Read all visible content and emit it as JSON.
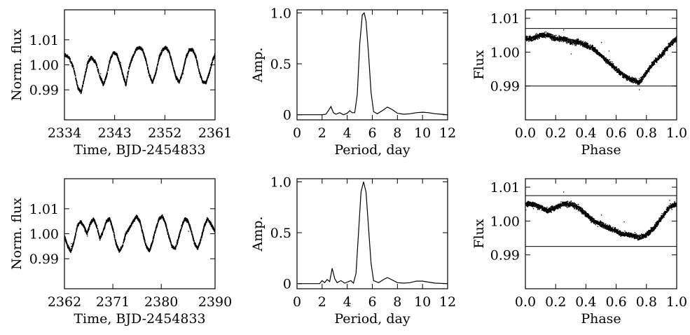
{
  "chart_data": [
    {
      "id": "lc1",
      "type": "scatter",
      "xlabel": "Time, BJD-2454833",
      "ylabel": "Norm. flux",
      "xlim": [
        2334,
        2361
      ],
      "ylim": [
        0.978,
        1.022
      ],
      "xticks": [
        2334,
        2343,
        2352,
        2361
      ],
      "xtick_labels": [
        "2334",
        "2343",
        "2352",
        "2361"
      ],
      "yticks": [
        0.99,
        1.0,
        1.01
      ],
      "ytick_labels": [
        "0.99",
        "1.00",
        "1.01"
      ],
      "series": [
        {
          "values": [
            [
              2334.0,
              1.004
            ],
            [
              2334.8,
              1.003
            ],
            [
              2335.6,
              0.999
            ],
            [
              2336.4,
              0.991
            ],
            [
              2337.0,
              0.989
            ],
            [
              2337.6,
              0.995
            ],
            [
              2338.2,
              1.001
            ],
            [
              2338.8,
              1.003
            ],
            [
              2339.6,
              1.001
            ],
            [
              2340.4,
              0.995
            ],
            [
              2341.0,
              0.992
            ],
            [
              2341.6,
              0.996
            ],
            [
              2342.2,
              1.002
            ],
            [
              2342.8,
              1.005
            ],
            [
              2343.4,
              1.004
            ],
            [
              2344.0,
              1.0
            ],
            [
              2344.6,
              0.995
            ],
            [
              2345.0,
              0.992
            ],
            [
              2345.6,
              0.999
            ],
            [
              2346.2,
              1.003
            ],
            [
              2346.8,
              1.006
            ],
            [
              2347.4,
              1.007
            ],
            [
              2348.0,
              1.006
            ],
            [
              2348.6,
              1.002
            ],
            [
              2349.2,
              0.996
            ],
            [
              2349.8,
              0.993
            ],
            [
              2350.4,
              0.997
            ],
            [
              2351.0,
              1.003
            ],
            [
              2351.6,
              1.006
            ],
            [
              2352.2,
              1.007
            ],
            [
              2352.8,
              1.005
            ],
            [
              2353.4,
              1.0
            ],
            [
              2354.0,
              0.995
            ],
            [
              2354.6,
              0.993
            ],
            [
              2355.2,
              0.997
            ],
            [
              2355.8,
              1.003
            ],
            [
              2356.4,
              1.006
            ],
            [
              2357.0,
              1.006
            ],
            [
              2357.6,
              1.003
            ],
            [
              2358.2,
              0.997
            ],
            [
              2358.8,
              0.993
            ],
            [
              2359.4,
              0.993
            ],
            [
              2360.0,
              0.997
            ],
            [
              2360.6,
              1.002
            ],
            [
              2361.0,
              1.004
            ]
          ]
        }
      ]
    },
    {
      "id": "ps1",
      "type": "line",
      "xlabel": "Period, day",
      "ylabel": "Amp.",
      "xlim": [
        0,
        12
      ],
      "ylim": [
        -0.05,
        1.03
      ],
      "xticks": [
        0,
        2,
        4,
        6,
        8,
        10,
        12
      ],
      "xtick_labels": [
        "0",
        "2",
        "4",
        "6",
        "8",
        "10",
        "12"
      ],
      "yticks": [
        0,
        0.5,
        1.0
      ],
      "ytick_labels": [
        "0",
        "0.5",
        "1.0"
      ],
      "series": [
        {
          "values": [
            [
              0,
              0
            ],
            [
              2.0,
              0
            ],
            [
              2.3,
              0.005
            ],
            [
              2.5,
              0.04
            ],
            [
              2.7,
              0.08
            ],
            [
              2.9,
              0.02
            ],
            [
              3.1,
              0.005
            ],
            [
              3.4,
              0.02
            ],
            [
              3.7,
              0.0
            ],
            [
              4.0,
              0.015
            ],
            [
              4.2,
              0.04
            ],
            [
              4.4,
              0.02
            ],
            [
              4.6,
              0.02
            ],
            [
              4.8,
              0.2
            ],
            [
              5.0,
              0.7
            ],
            [
              5.2,
              0.98
            ],
            [
              5.35,
              1.0
            ],
            [
              5.5,
              0.92
            ],
            [
              5.7,
              0.6
            ],
            [
              5.9,
              0.22
            ],
            [
              6.1,
              0.03
            ],
            [
              6.4,
              0.01
            ],
            [
              6.8,
              0.04
            ],
            [
              7.2,
              0.075
            ],
            [
              7.6,
              0.05
            ],
            [
              8.0,
              0.015
            ],
            [
              8.5,
              0.005
            ],
            [
              9.0,
              0.01
            ],
            [
              9.5,
              0.02
            ],
            [
              10.0,
              0.025
            ],
            [
              10.5,
              0.02
            ],
            [
              11.0,
              0.01
            ],
            [
              11.5,
              0.005
            ],
            [
              12.0,
              0
            ]
          ]
        }
      ]
    },
    {
      "id": "ph1",
      "type": "scatter",
      "xlabel": "Phase",
      "ylabel": "Flux",
      "xlim": [
        0,
        1
      ],
      "ylim": [
        0.98,
        1.0125
      ],
      "xticks": [
        0,
        0.2,
        0.4,
        0.6,
        0.8,
        1.0
      ],
      "xtick_labels": [
        "0.0",
        "0.2",
        "0.4",
        "0.6",
        "0.8",
        "1.0"
      ],
      "yticks": [
        0.99,
        1.0,
        1.01
      ],
      "ytick_labels": [
        "0.99",
        "1.00",
        "1.01"
      ],
      "hlines": [
        1.007,
        0.99
      ],
      "series": [
        {
          "values": [
            [
              0.0,
              1.004
            ],
            [
              0.05,
              1.004
            ],
            [
              0.1,
              1.005
            ],
            [
              0.15,
              1.005
            ],
            [
              0.2,
              1.004
            ],
            [
              0.25,
              1.004
            ],
            [
              0.3,
              1.003
            ],
            [
              0.35,
              1.003
            ],
            [
              0.4,
              1.002
            ],
            [
              0.45,
              1.001
            ],
            [
              0.5,
              0.999
            ],
            [
              0.55,
              0.997
            ],
            [
              0.6,
              0.995
            ],
            [
              0.65,
              0.993
            ],
            [
              0.7,
              0.992
            ],
            [
              0.75,
              0.991
            ],
            [
              0.8,
              0.994
            ],
            [
              0.85,
              0.997
            ],
            [
              0.9,
              0.999
            ],
            [
              0.95,
              1.002
            ],
            [
              1.0,
              1.004
            ]
          ]
        }
      ]
    },
    {
      "id": "lc2",
      "type": "scatter",
      "xlabel": "Time, BJD-2454833",
      "ylabel": "Norm. flux",
      "xlim": [
        2362,
        2390
      ],
      "ylim": [
        0.978,
        1.022
      ],
      "xticks": [
        2362,
        2371,
        2380,
        2390
      ],
      "xtick_labels": [
        "2362",
        "2371",
        "2380",
        "2390"
      ],
      "yticks": [
        0.99,
        1.0,
        1.01
      ],
      "ytick_labels": [
        "0.99",
        "1.00",
        "1.01"
      ],
      "series": [
        {
          "values": [
            [
              2362.0,
              0.999
            ],
            [
              2362.6,
              0.995
            ],
            [
              2363.2,
              0.993
            ],
            [
              2363.8,
              0.997
            ],
            [
              2364.4,
              1.003
            ],
            [
              2365.0,
              1.005
            ],
            [
              2365.6,
              1.003
            ],
            [
              2366.2,
              1.0
            ],
            [
              2366.8,
              1.004
            ],
            [
              2367.4,
              1.006
            ],
            [
              2368.0,
              1.003
            ],
            [
              2368.6,
              0.998
            ],
            [
              2369.2,
              1.001
            ],
            [
              2369.8,
              1.005
            ],
            [
              2370.4,
              1.006
            ],
            [
              2371.0,
              1.002
            ],
            [
              2371.6,
              0.996
            ],
            [
              2372.2,
              0.993
            ],
            [
              2372.8,
              0.995
            ],
            [
              2373.4,
              1.0
            ],
            [
              2374.0,
              1.002
            ],
            [
              2374.8,
              1.005
            ],
            [
              2375.4,
              1.007
            ],
            [
              2376.0,
              1.005
            ],
            [
              2376.6,
              1.0
            ],
            [
              2377.2,
              0.995
            ],
            [
              2377.8,
              0.993
            ],
            [
              2378.4,
              0.997
            ],
            [
              2379.0,
              1.002
            ],
            [
              2379.6,
              1.006
            ],
            [
              2380.2,
              1.007
            ],
            [
              2380.8,
              1.004
            ],
            [
              2381.4,
              0.999
            ],
            [
              2382.0,
              0.995
            ],
            [
              2382.6,
              0.994
            ],
            [
              2383.2,
              0.998
            ],
            [
              2383.8,
              1.003
            ],
            [
              2384.4,
              1.006
            ],
            [
              2385.0,
              1.005
            ],
            [
              2385.6,
              1.001
            ],
            [
              2386.2,
              0.996
            ],
            [
              2386.8,
              0.994
            ],
            [
              2387.4,
              0.998
            ],
            [
              2388.0,
              1.003
            ],
            [
              2388.6,
              1.006
            ],
            [
              2389.2,
              1.004
            ],
            [
              2390.0,
              1.001
            ]
          ]
        }
      ]
    },
    {
      "id": "ps2",
      "type": "line",
      "xlabel": "Period, day",
      "ylabel": "Amp.",
      "xlim": [
        0,
        12
      ],
      "ylim": [
        -0.05,
        1.03
      ],
      "xticks": [
        0,
        2,
        4,
        6,
        8,
        10,
        12
      ],
      "xtick_labels": [
        "0",
        "2",
        "4",
        "6",
        "8",
        "10",
        "12"
      ],
      "yticks": [
        0,
        0.5,
        1.0
      ],
      "ytick_labels": [
        "0",
        "0.5",
        "1.0"
      ],
      "series": [
        {
          "values": [
            [
              0,
              0
            ],
            [
              1.8,
              0
            ],
            [
              2.0,
              0.03
            ],
            [
              2.2,
              0.01
            ],
            [
              2.4,
              0.04
            ],
            [
              2.6,
              0.02
            ],
            [
              2.8,
              0.15
            ],
            [
              3.0,
              0.05
            ],
            [
              3.2,
              0.01
            ],
            [
              3.5,
              0.03
            ],
            [
              3.8,
              0.005
            ],
            [
              4.1,
              0.02
            ],
            [
              4.3,
              0.03
            ],
            [
              4.5,
              0.005
            ],
            [
              4.7,
              0.1
            ],
            [
              4.9,
              0.5
            ],
            [
              5.1,
              0.9
            ],
            [
              5.3,
              1.0
            ],
            [
              5.5,
              0.9
            ],
            [
              5.7,
              0.55
            ],
            [
              5.9,
              0.2
            ],
            [
              6.1,
              0.03
            ],
            [
              6.5,
              0.01
            ],
            [
              6.9,
              0.04
            ],
            [
              7.2,
              0.06
            ],
            [
              7.6,
              0.035
            ],
            [
              8.0,
              0.01
            ],
            [
              8.5,
              0.005
            ],
            [
              9.0,
              0.01
            ],
            [
              9.5,
              0.025
            ],
            [
              10.0,
              0.025
            ],
            [
              10.5,
              0.015
            ],
            [
              11.0,
              0.005
            ],
            [
              12.0,
              0
            ]
          ]
        }
      ]
    },
    {
      "id": "ph2",
      "type": "scatter",
      "xlabel": "Phase",
      "ylabel": "Flux",
      "xlim": [
        0,
        1
      ],
      "ylim": [
        0.98,
        1.0125
      ],
      "xticks": [
        0,
        0.2,
        0.4,
        0.6,
        0.8,
        1.0
      ],
      "xtick_labels": [
        "0.0",
        "0.2",
        "0.4",
        "0.6",
        "0.8",
        "1.0"
      ],
      "yticks": [
        0.99,
        1.0,
        1.01
      ],
      "ytick_labels": [
        "0.99",
        "1.00",
        "1.01"
      ],
      "hlines": [
        1.0075,
        0.9925
      ],
      "series": [
        {
          "values": [
            [
              0.0,
              1.005
            ],
            [
              0.05,
              1.005
            ],
            [
              0.1,
              1.004
            ],
            [
              0.15,
              1.003
            ],
            [
              0.2,
              1.004
            ],
            [
              0.25,
              1.005
            ],
            [
              0.3,
              1.005
            ],
            [
              0.35,
              1.004
            ],
            [
              0.4,
              1.002
            ],
            [
              0.45,
              1.0
            ],
            [
              0.5,
              0.999
            ],
            [
              0.55,
              0.998
            ],
            [
              0.6,
              0.997
            ],
            [
              0.65,
              0.996
            ],
            [
              0.7,
              0.996
            ],
            [
              0.75,
              0.995
            ],
            [
              0.8,
              0.996
            ],
            [
              0.85,
              0.998
            ],
            [
              0.9,
              1.001
            ],
            [
              0.95,
              1.004
            ],
            [
              1.0,
              1.005
            ]
          ]
        }
      ]
    }
  ]
}
